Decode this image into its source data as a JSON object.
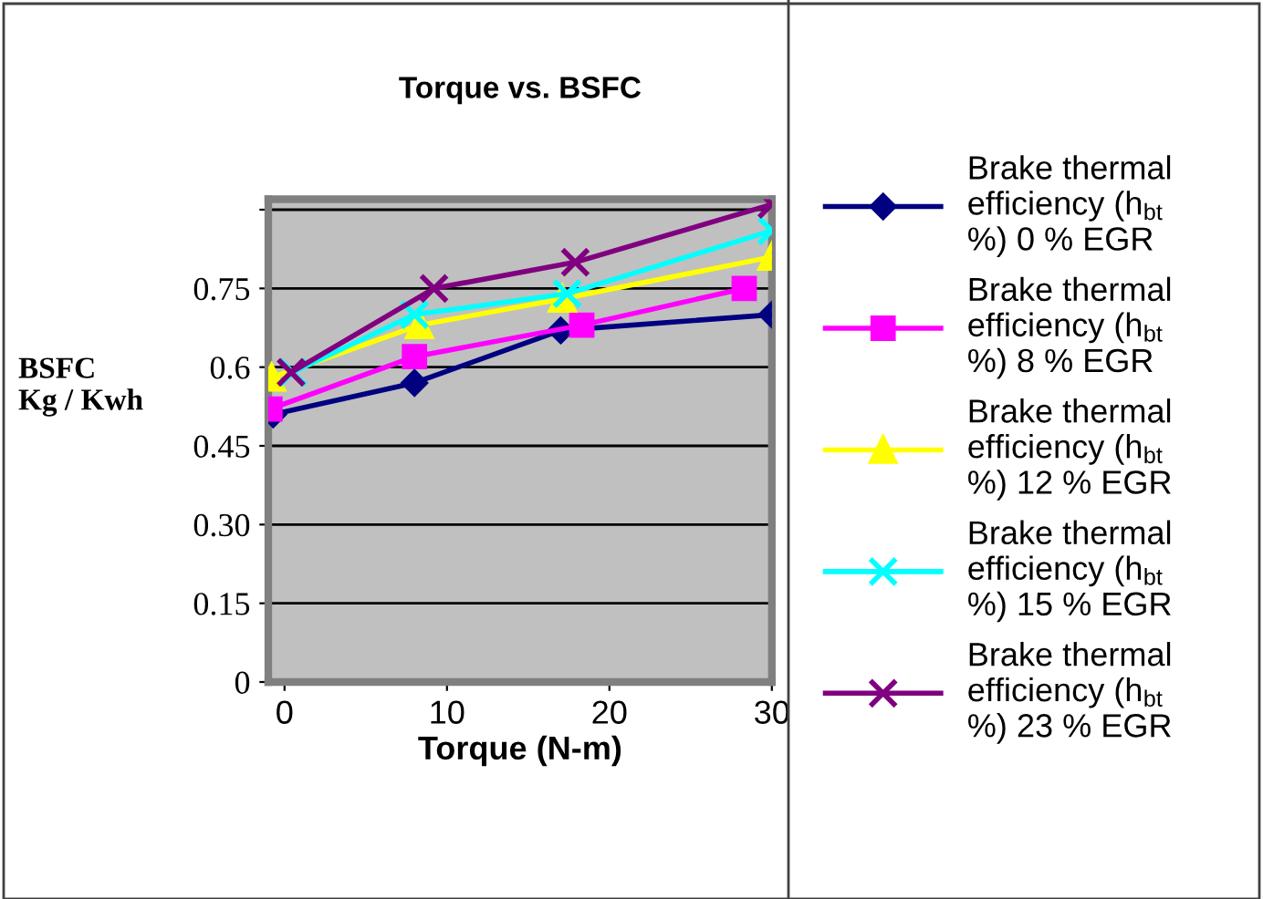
{
  "chart_data": {
    "type": "line",
    "title": "Torque vs. BSFC",
    "xlabel": "Torque (N-m)",
    "ylabel": "BSFC\nKg / Kwh",
    "xlim": [
      -1,
      30
    ],
    "xticks": [
      0,
      10,
      20,
      30
    ],
    "ylim": [
      0,
      0.92
    ],
    "yticks": [
      0,
      0.15,
      {
        "value": 0.3,
        "label": "0.30"
      },
      0.45,
      0.6,
      0.75,
      {
        "value": 0.9,
        "label": null
      }
    ],
    "grid": "y",
    "legend": "right",
    "series": [
      {
        "name": "Brake thermal efficiency (h$_{bt}$ %) 0 % EGR",
        "color": "#000080",
        "marker": "diamond",
        "x": [
          -0.7,
          8,
          17,
          30
        ],
        "values": [
          0.51,
          0.57,
          0.67,
          0.7
        ]
      },
      {
        "name": "Brake thermal efficiency (h$_{bt}$ %) 8 % EGR",
        "color": "#ff00ff",
        "marker": "square",
        "x": [
          -0.9,
          8,
          18.3,
          28.3
        ],
        "values": [
          0.52,
          0.62,
          0.68,
          0.75
        ]
      },
      {
        "name": "Brake thermal efficiency (h$_{bt}$ %) 12 % EGR",
        "color": "#ffff00",
        "marker": "triangle",
        "x": [
          -0.8,
          8.3,
          17.1,
          30
        ],
        "values": [
          0.58,
          0.68,
          0.73,
          0.81
        ]
      },
      {
        "name": "Brake thermal efficiency (h$_{bt}$ %) 15 % EGR",
        "color": "#00ffff",
        "marker": "cross",
        "x": [
          0.5,
          8,
          17.4,
          30
        ],
        "values": [
          0.59,
          0.7,
          0.74,
          0.86
        ]
      },
      {
        "name": "Brake thermal efficiency (h$_{bt}$ %) 23 % EGR",
        "color": "#800080",
        "marker": "cross",
        "x": [
          0.4,
          9.2,
          17.9,
          30
        ],
        "values": [
          0.59,
          0.75,
          0.8,
          0.91
        ]
      }
    ]
  }
}
